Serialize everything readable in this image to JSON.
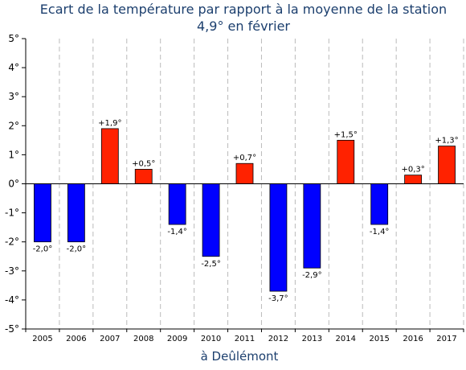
{
  "chart_data": {
    "type": "bar",
    "title": [
      "Ecart de la température par rapport à la moyenne de la station",
      "4,9° en février"
    ],
    "xlabel": "à Deûlémont",
    "ylabel": "",
    "categories": [
      "2005",
      "2006",
      "2007",
      "2008",
      "2009",
      "2010",
      "2011",
      "2012",
      "2013",
      "2014",
      "2015",
      "2016",
      "2017"
    ],
    "values": [
      -2.0,
      -2.0,
      1.9,
      0.5,
      -1.4,
      -2.5,
      0.7,
      -3.7,
      -2.9,
      1.5,
      -1.4,
      0.3,
      1.3
    ],
    "data_labels": [
      "-2,0°",
      "-2,0°",
      "+1,9°",
      "+0,5°",
      "-1,4°",
      "-2,5°",
      "+0,7°",
      "-3,7°",
      "-2,9°",
      "+1,5°",
      "-1,4°",
      "+0,3°",
      "+1,3°"
    ],
    "yticks": [
      5,
      4,
      3,
      2,
      1,
      0,
      -1,
      -2,
      -3,
      -4,
      -5
    ],
    "ytick_labels": [
      "5°",
      "4°",
      "3°",
      "2°",
      "1°",
      "0°",
      "-1°",
      "-2°",
      "-3°",
      "-4°",
      "-5°"
    ],
    "ylim": [
      -5,
      5
    ],
    "grid": "vertical dashed",
    "legend": "none",
    "colors": {
      "positive": "#ff2200",
      "negative": "#0000ff",
      "title": "#1c3f6e",
      "grid": "#bbbbbb"
    }
  }
}
